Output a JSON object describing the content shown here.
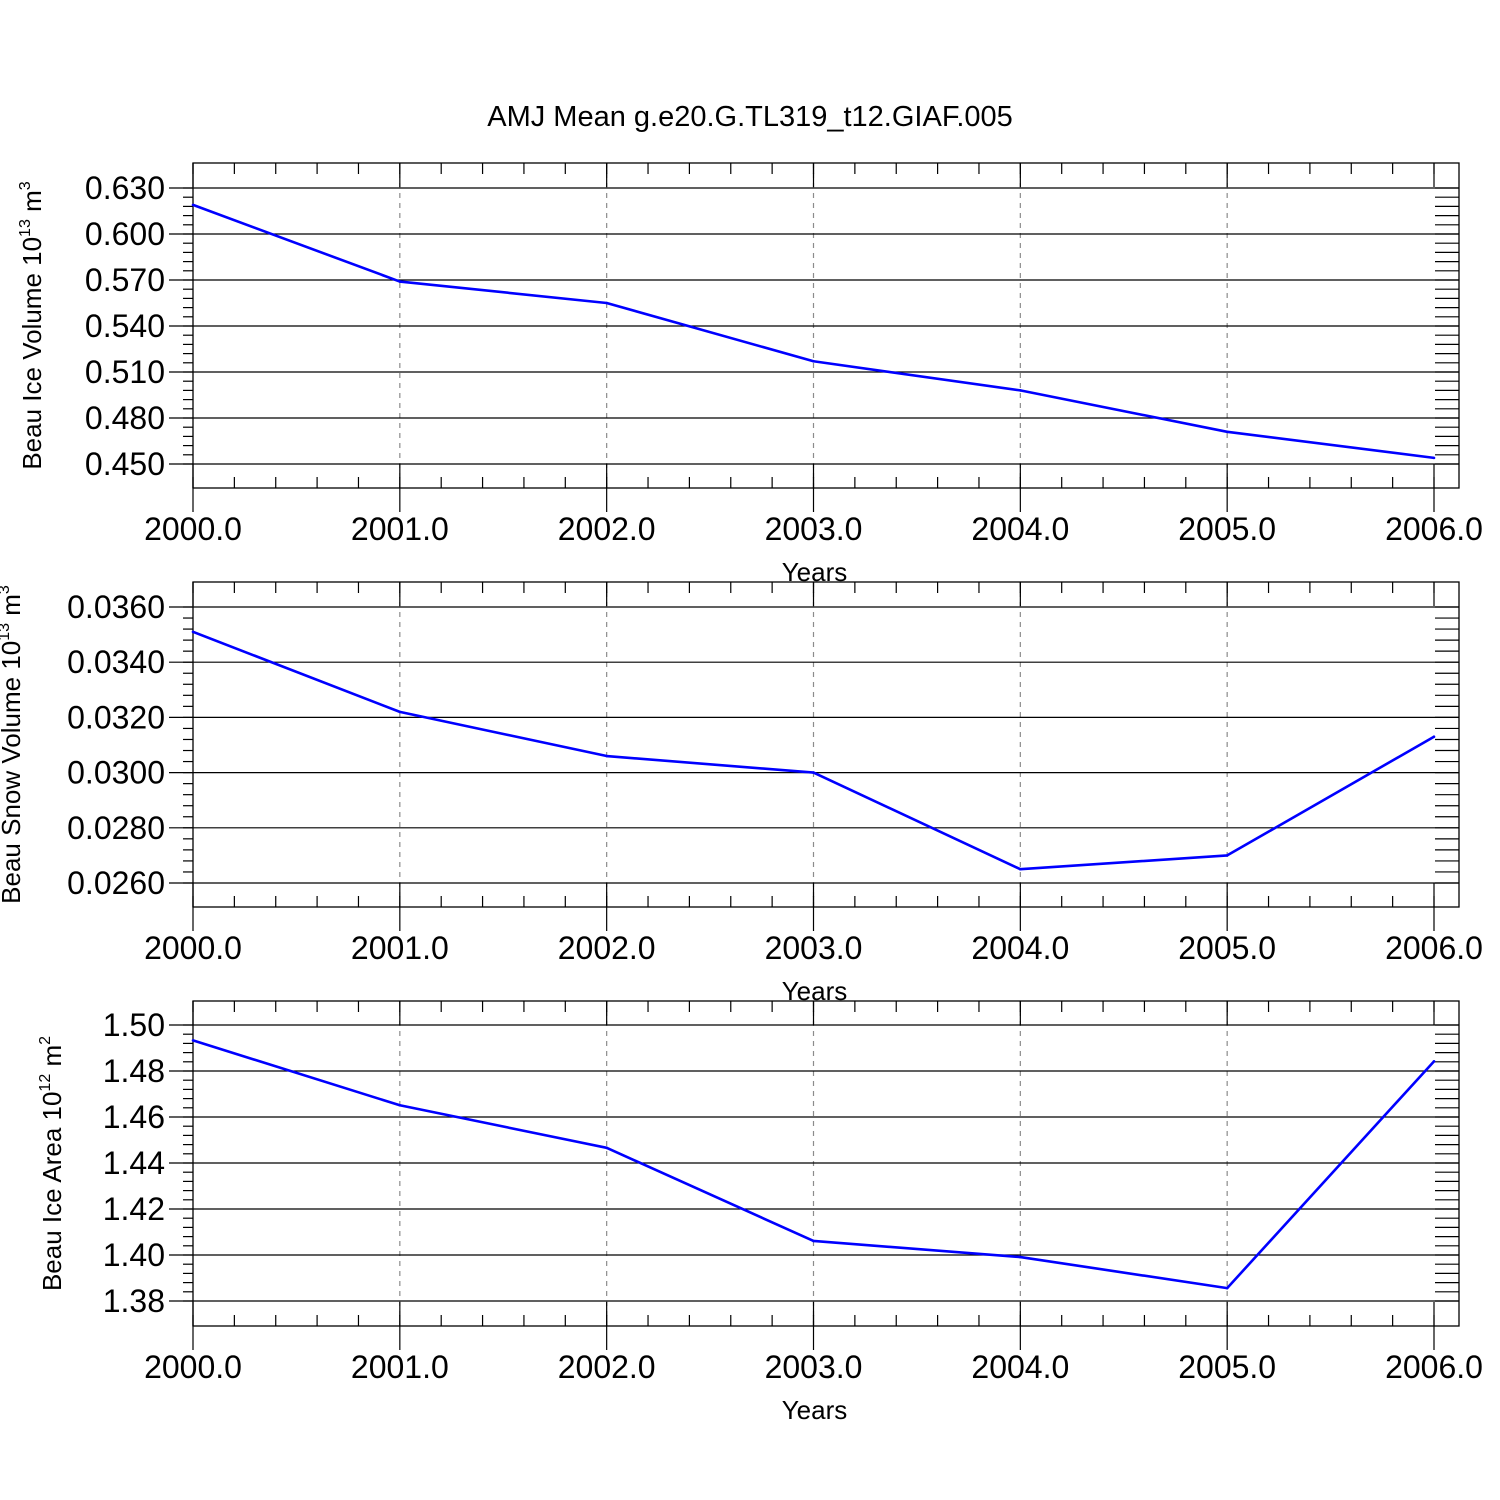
{
  "title": "AMJ Mean g.e20.G.TL319_t12.GIAF.005",
  "colors": {
    "line": "#0000ff",
    "axis": "#000000",
    "grid": "#8c8c8c"
  },
  "chart_data": [
    {
      "type": "line",
      "title": "",
      "xlabel": "Years",
      "ylabel": {
        "text": "Beau Ice Volume 10",
        "exp": "13",
        "unit": " m",
        "unit_exp": "3"
      },
      "x": [
        2000,
        2001,
        2002,
        2003,
        2004,
        2005,
        2006
      ],
      "y": [
        0.619,
        0.569,
        0.555,
        0.517,
        0.498,
        0.471,
        0.454
      ],
      "xlim": [
        2000,
        2006
      ],
      "ylim": [
        0.45,
        0.63
      ],
      "yticks": [
        0.45,
        0.48,
        0.51,
        0.54,
        0.57,
        0.6,
        0.63
      ],
      "ytick_labels": [
        "0.450",
        "0.480",
        "0.510",
        "0.540",
        "0.570",
        "0.600",
        "0.630"
      ],
      "xtick_labels": [
        "2000.0",
        "2001.0",
        "2002.0",
        "2003.0",
        "2004.0",
        "2005.0",
        "2006.0"
      ],
      "grid": "vertical dashed"
    },
    {
      "type": "line",
      "title": "",
      "xlabel": "Years",
      "ylabel": {
        "text": "Beau Snow Volume 10",
        "exp": "13",
        "unit": " m",
        "unit_exp": "3"
      },
      "x": [
        2000,
        2001,
        2002,
        2003,
        2004,
        2005,
        2006
      ],
      "y": [
        0.0351,
        0.0322,
        0.0306,
        0.03,
        0.0265,
        0.027,
        0.0313
      ],
      "xlim": [
        2000,
        2006
      ],
      "ylim": [
        0.026,
        0.036
      ],
      "yticks": [
        0.026,
        0.028,
        0.03,
        0.032,
        0.034,
        0.036
      ],
      "ytick_labels": [
        "0.0260",
        "0.0280",
        "0.0300",
        "0.0320",
        "0.0340",
        "0.0360"
      ],
      "xtick_labels": [
        "2000.0",
        "2001.0",
        "2002.0",
        "2003.0",
        "2004.0",
        "2005.0",
        "2006.0"
      ],
      "grid": "vertical dashed"
    },
    {
      "type": "line",
      "title": "",
      "xlabel": "Years",
      "ylabel": {
        "text": "Beau Ice Area 10",
        "exp": "12",
        "unit": " m",
        "unit_exp": "2"
      },
      "x": [
        2000,
        2001,
        2002,
        2003,
        2004,
        2005,
        2006
      ],
      "y": [
        1.4933,
        1.4651,
        1.4466,
        1.4061,
        1.3991,
        1.3856,
        1.4842
      ],
      "xlim": [
        2000,
        2006
      ],
      "ylim": [
        1.38,
        1.5
      ],
      "yticks": [
        1.38,
        1.4,
        1.42,
        1.44,
        1.46,
        1.48,
        1.5
      ],
      "ytick_labels": [
        "1.38",
        "1.40",
        "1.42",
        "1.44",
        "1.46",
        "1.48",
        "1.50"
      ],
      "xtick_labels": [
        "2000.0",
        "2001.0",
        "2002.0",
        "2003.0",
        "2004.0",
        "2005.0",
        "2006.0"
      ],
      "grid": "vertical dashed"
    }
  ]
}
